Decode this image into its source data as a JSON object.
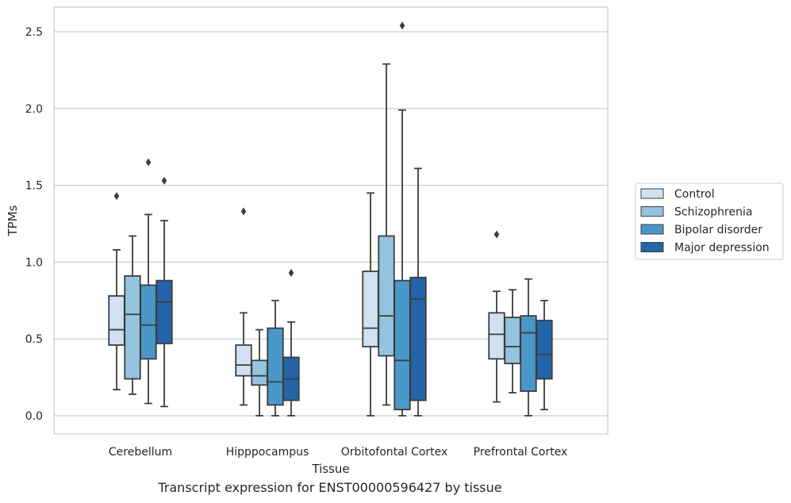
{
  "caption": "Transcript expression for ENST00000596427 by tissue",
  "chart_data": {
    "type": "boxplot",
    "xlabel": "Tissue",
    "ylabel": "TPMs",
    "ylim": [
      -0.12,
      2.65
    ],
    "yticks": [
      "0.0",
      "0.5",
      "1.0",
      "1.5",
      "2.0",
      "2.5"
    ],
    "grid": "horizontal",
    "legend_position": "right",
    "categories": [
      "Cerebellum",
      "Hipppocampus",
      "Orbitofontal Cortex",
      "Prefrontal Cortex"
    ],
    "series": [
      {
        "name": "Control",
        "color": "#d0e1f2",
        "boxes": [
          {
            "whislo": 0.17,
            "q1": 0.46,
            "med": 0.56,
            "q3": 0.78,
            "whishi": 1.08,
            "fliers": [
              1.43
            ]
          },
          {
            "whislo": 0.07,
            "q1": 0.26,
            "med": 0.33,
            "q3": 0.46,
            "whishi": 0.67,
            "fliers": [
              1.33
            ]
          },
          {
            "whislo": 0.0,
            "q1": 0.45,
            "med": 0.57,
            "q3": 0.94,
            "whishi": 1.45,
            "fliers": []
          },
          {
            "whislo": 0.09,
            "q1": 0.37,
            "med": 0.53,
            "q3": 0.67,
            "whishi": 0.81,
            "fliers": [
              1.18
            ]
          }
        ]
      },
      {
        "name": "Schizophrenia",
        "color": "#94c4df",
        "boxes": [
          {
            "whislo": 0.14,
            "q1": 0.24,
            "med": 0.66,
            "q3": 0.91,
            "whishi": 1.17,
            "fliers": []
          },
          {
            "whislo": 0.0,
            "q1": 0.2,
            "med": 0.26,
            "q3": 0.36,
            "whishi": 0.56,
            "fliers": []
          },
          {
            "whislo": 0.07,
            "q1": 0.39,
            "med": 0.65,
            "q3": 1.17,
            "whishi": 2.29,
            "fliers": []
          },
          {
            "whislo": 0.15,
            "q1": 0.34,
            "med": 0.45,
            "q3": 0.64,
            "whishi": 0.82,
            "fliers": []
          }
        ]
      },
      {
        "name": "Bipolar disorder",
        "color": "#4a98c9",
        "boxes": [
          {
            "whislo": 0.08,
            "q1": 0.37,
            "med": 0.59,
            "q3": 0.85,
            "whishi": 1.31,
            "fliers": [
              1.65
            ]
          },
          {
            "whislo": 0.0,
            "q1": 0.07,
            "med": 0.22,
            "q3": 0.57,
            "whishi": 0.75,
            "fliers": []
          },
          {
            "whislo": 0.0,
            "q1": 0.04,
            "med": 0.36,
            "q3": 0.88,
            "whishi": 1.99,
            "fliers": [
              2.54
            ]
          },
          {
            "whislo": 0.0,
            "q1": 0.16,
            "med": 0.54,
            "q3": 0.65,
            "whishi": 0.89,
            "fliers": []
          }
        ]
      },
      {
        "name": "Major depression",
        "color": "#2464a9",
        "boxes": [
          {
            "whislo": 0.06,
            "q1": 0.47,
            "med": 0.74,
            "q3": 0.88,
            "whishi": 1.27,
            "fliers": [
              1.53
            ]
          },
          {
            "whislo": 0.0,
            "q1": 0.1,
            "med": 0.24,
            "q3": 0.38,
            "whishi": 0.61,
            "fliers": [
              0.93
            ]
          },
          {
            "whislo": 0.0,
            "q1": 0.1,
            "med": 0.76,
            "q3": 0.9,
            "whishi": 1.61,
            "fliers": []
          },
          {
            "whislo": 0.04,
            "q1": 0.24,
            "med": 0.4,
            "q3": 0.62,
            "whishi": 0.75,
            "fliers": []
          }
        ]
      }
    ]
  }
}
